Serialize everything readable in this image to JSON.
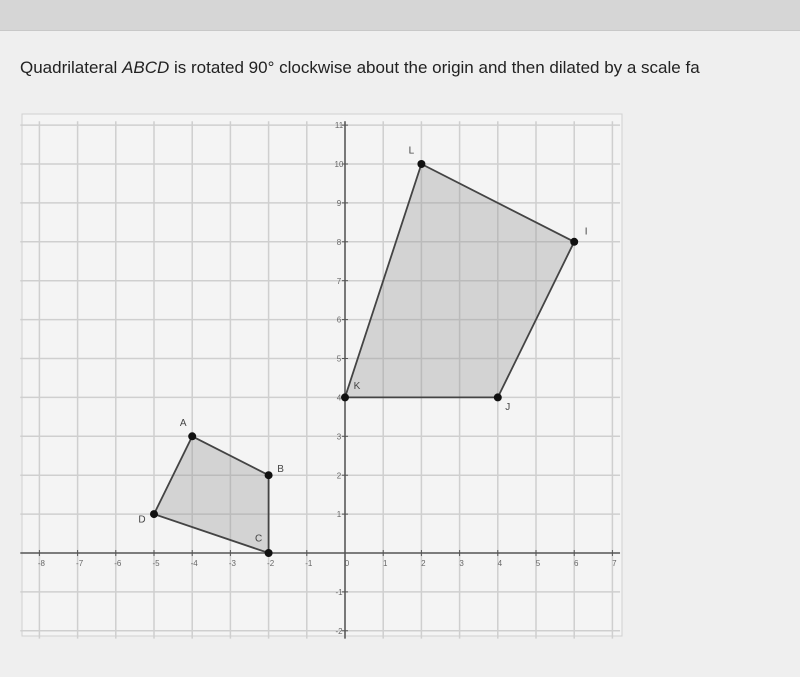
{
  "question": {
    "text_before": "Quadrilateral ",
    "text_italic": "ABCD",
    "text_after": " is rotated 90° clockwise about the origin and then dilated by a scale fa"
  },
  "graph": {
    "xlim": [
      -8.5,
      7.2
    ],
    "ylim": [
      -2.2,
      11.1
    ],
    "xticks": [
      -8,
      -7,
      -6,
      -5,
      -4,
      -3,
      -2,
      -1,
      0,
      1,
      2,
      3,
      4,
      5,
      6,
      7
    ],
    "yticks": [
      -2,
      -1,
      1,
      2,
      3,
      4,
      5,
      6,
      7,
      8,
      9,
      10,
      11
    ],
    "shapes": [
      {
        "points": [
          {
            "label": "A",
            "x": -4,
            "y": 3
          },
          {
            "label": "B",
            "x": -2,
            "y": 2
          },
          {
            "label": "C",
            "x": -2,
            "y": 0
          },
          {
            "label": "D",
            "x": -5,
            "y": 1
          }
        ]
      },
      {
        "points": [
          {
            "label": "I",
            "x": 6,
            "y": 8
          },
          {
            "label": "J",
            "x": 4,
            "y": 4
          },
          {
            "label": "K",
            "x": 0,
            "y": 4
          },
          {
            "label": "L",
            "x": 2,
            "y": 10
          }
        ]
      }
    ]
  }
}
